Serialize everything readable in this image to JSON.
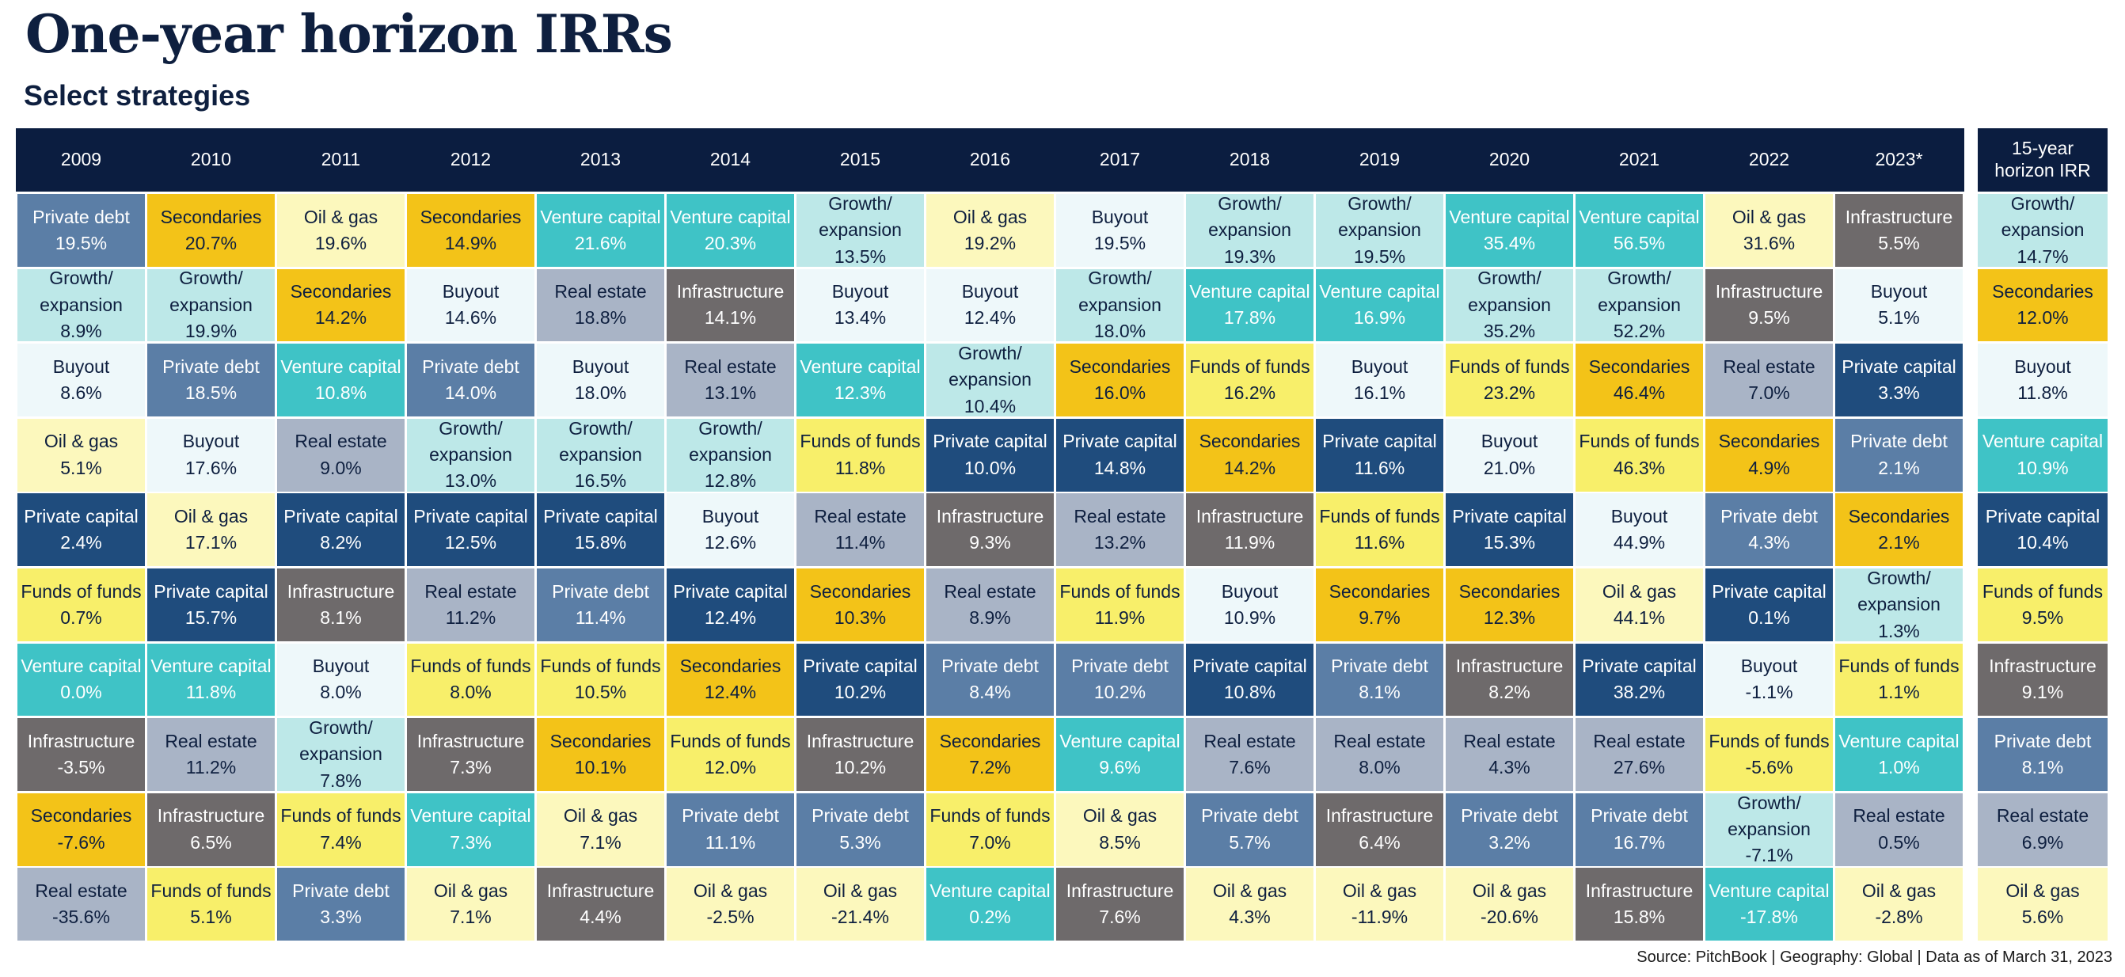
{
  "title": "One-year horizon IRRs",
  "subtitle": "Select strategies",
  "source": "Source: PitchBook | Geography: Global | Data as of March 31, 2023",
  "colors": {
    "Private debt": {
      "bg": "#5b7ea6",
      "fg": "#ffffff"
    },
    "Secondaries": {
      "bg": "#f3c318",
      "fg": "#0e1f3f"
    },
    "Oil & gas": {
      "bg": "#fcf8bd",
      "fg": "#0e1f3f"
    },
    "Venture capital": {
      "bg": "#3fc3c6",
      "fg": "#ffffff"
    },
    "Growth/ expansion": {
      "bg": "#bde8e8",
      "fg": "#0e1f3f"
    },
    "Buyout": {
      "bg": "#eef8fa",
      "fg": "#0e1f3f"
    },
    "Infrastructure": {
      "bg": "#6e6a6b",
      "fg": "#ffffff"
    },
    "Real estate": {
      "bg": "#a9b4c6",
      "fg": "#0e1f3f"
    },
    "Private capital": {
      "bg": "#1f4c7d",
      "fg": "#ffffff"
    },
    "Funds of funds": {
      "bg": "#f8ef6a",
      "fg": "#0e1f3f"
    }
  },
  "chart_data": {
    "type": "table",
    "title": "One-year horizon IRRs",
    "subtitle": "Select strategies",
    "columns": [
      {
        "year": "2009",
        "cells": [
          {
            "strategy": "Private debt",
            "value": "19.5%"
          },
          {
            "strategy": "Growth/ expansion",
            "value": "8.9%"
          },
          {
            "strategy": "Buyout",
            "value": "8.6%"
          },
          {
            "strategy": "Oil & gas",
            "value": "5.1%"
          },
          {
            "strategy": "Private capital",
            "value": "2.4%"
          },
          {
            "strategy": "Funds of funds",
            "value": "0.7%"
          },
          {
            "strategy": "Venture capital",
            "value": "0.0%"
          },
          {
            "strategy": "Infrastructure",
            "value": "-3.5%"
          },
          {
            "strategy": "Secondaries",
            "value": "-7.6%"
          },
          {
            "strategy": "Real estate",
            "value": "-35.6%"
          }
        ]
      },
      {
        "year": "2010",
        "cells": [
          {
            "strategy": "Secondaries",
            "value": "20.7%"
          },
          {
            "strategy": "Growth/ expansion",
            "value": "19.9%"
          },
          {
            "strategy": "Private debt",
            "value": "18.5%"
          },
          {
            "strategy": "Buyout",
            "value": "17.6%"
          },
          {
            "strategy": "Oil & gas",
            "value": "17.1%"
          },
          {
            "strategy": "Private capital",
            "value": "15.7%"
          },
          {
            "strategy": "Venture capital",
            "value": "11.8%"
          },
          {
            "strategy": "Real estate",
            "value": "11.2%"
          },
          {
            "strategy": "Infrastructure",
            "value": "6.5%"
          },
          {
            "strategy": "Funds of funds",
            "value": "5.1%"
          }
        ]
      },
      {
        "year": "2011",
        "cells": [
          {
            "strategy": "Oil & gas",
            "value": "19.6%"
          },
          {
            "strategy": "Secondaries",
            "value": "14.2%"
          },
          {
            "strategy": "Venture capital",
            "value": "10.8%"
          },
          {
            "strategy": "Real estate",
            "value": "9.0%"
          },
          {
            "strategy": "Private capital",
            "value": "8.2%"
          },
          {
            "strategy": "Infrastructure",
            "value": "8.1%"
          },
          {
            "strategy": "Buyout",
            "value": "8.0%"
          },
          {
            "strategy": "Growth/ expansion",
            "value": "7.8%"
          },
          {
            "strategy": "Funds of funds",
            "value": "7.4%"
          },
          {
            "strategy": "Private debt",
            "value": "3.3%"
          }
        ]
      },
      {
        "year": "2012",
        "cells": [
          {
            "strategy": "Secondaries",
            "value": "14.9%"
          },
          {
            "strategy": "Buyout",
            "value": "14.6%"
          },
          {
            "strategy": "Private debt",
            "value": "14.0%"
          },
          {
            "strategy": "Growth/ expansion",
            "value": "13.0%"
          },
          {
            "strategy": "Private capital",
            "value": "12.5%"
          },
          {
            "strategy": "Real estate",
            "value": "11.2%"
          },
          {
            "strategy": "Funds of funds",
            "value": "8.0%"
          },
          {
            "strategy": "Infrastructure",
            "value": "7.3%"
          },
          {
            "strategy": "Venture capital",
            "value": "7.3%"
          },
          {
            "strategy": "Oil & gas",
            "value": "7.1%"
          }
        ]
      },
      {
        "year": "2013",
        "cells": [
          {
            "strategy": "Venture capital",
            "value": "21.6%"
          },
          {
            "strategy": "Real estate",
            "value": "18.8%"
          },
          {
            "strategy": "Buyout",
            "value": "18.0%"
          },
          {
            "strategy": "Growth/ expansion",
            "value": "16.5%"
          },
          {
            "strategy": "Private capital",
            "value": "15.8%"
          },
          {
            "strategy": "Private debt",
            "value": "11.4%"
          },
          {
            "strategy": "Funds of funds",
            "value": "10.5%"
          },
          {
            "strategy": "Secondaries",
            "value": "10.1%"
          },
          {
            "strategy": "Oil & gas",
            "value": "7.1%"
          },
          {
            "strategy": "Infrastructure",
            "value": "4.4%"
          }
        ]
      },
      {
        "year": "2014",
        "cells": [
          {
            "strategy": "Venture capital",
            "value": "20.3%"
          },
          {
            "strategy": "Infrastructure",
            "value": "14.1%"
          },
          {
            "strategy": "Real estate",
            "value": "13.1%"
          },
          {
            "strategy": "Growth/ expansion",
            "value": "12.8%"
          },
          {
            "strategy": "Buyout",
            "value": "12.6%"
          },
          {
            "strategy": "Private capital",
            "value": "12.4%"
          },
          {
            "strategy": "Secondaries",
            "value": "12.4%"
          },
          {
            "strategy": "Funds of funds",
            "value": "12.0%"
          },
          {
            "strategy": "Private debt",
            "value": "11.1%"
          },
          {
            "strategy": "Oil & gas",
            "value": "-2.5%"
          }
        ]
      },
      {
        "year": "2015",
        "cells": [
          {
            "strategy": "Growth/ expansion",
            "value": "13.5%"
          },
          {
            "strategy": "Buyout",
            "value": "13.4%"
          },
          {
            "strategy": "Venture capital",
            "value": "12.3%"
          },
          {
            "strategy": "Funds of funds",
            "value": "11.8%"
          },
          {
            "strategy": "Real estate",
            "value": "11.4%"
          },
          {
            "strategy": "Secondaries",
            "value": "10.3%"
          },
          {
            "strategy": "Private capital",
            "value": "10.2%"
          },
          {
            "strategy": "Infrastructure",
            "value": "10.2%"
          },
          {
            "strategy": "Private debt",
            "value": "5.3%"
          },
          {
            "strategy": "Oil & gas",
            "value": "-21.4%"
          }
        ]
      },
      {
        "year": "2016",
        "cells": [
          {
            "strategy": "Oil & gas",
            "value": "19.2%"
          },
          {
            "strategy": "Buyout",
            "value": "12.4%"
          },
          {
            "strategy": "Growth/ expansion",
            "value": "10.4%"
          },
          {
            "strategy": "Private capital",
            "value": "10.0%"
          },
          {
            "strategy": "Infrastructure",
            "value": "9.3%"
          },
          {
            "strategy": "Real estate",
            "value": "8.9%"
          },
          {
            "strategy": "Private debt",
            "value": "8.4%"
          },
          {
            "strategy": "Secondaries",
            "value": "7.2%"
          },
          {
            "strategy": "Funds of funds",
            "value": "7.0%"
          },
          {
            "strategy": "Venture capital",
            "value": "0.2%"
          }
        ]
      },
      {
        "year": "2017",
        "cells": [
          {
            "strategy": "Buyout",
            "value": "19.5%"
          },
          {
            "strategy": "Growth/ expansion",
            "value": "18.0%"
          },
          {
            "strategy": "Secondaries",
            "value": "16.0%"
          },
          {
            "strategy": "Private capital",
            "value": "14.8%"
          },
          {
            "strategy": "Real estate",
            "value": "13.2%"
          },
          {
            "strategy": "Funds of funds",
            "value": "11.9%"
          },
          {
            "strategy": "Private debt",
            "value": "10.2%"
          },
          {
            "strategy": "Venture capital",
            "value": "9.6%"
          },
          {
            "strategy": "Oil & gas",
            "value": "8.5%"
          },
          {
            "strategy": "Infrastructure",
            "value": "7.6%"
          }
        ]
      },
      {
        "year": "2018",
        "cells": [
          {
            "strategy": "Growth/ expansion",
            "value": "19.3%"
          },
          {
            "strategy": "Venture capital",
            "value": "17.8%"
          },
          {
            "strategy": "Funds of funds",
            "value": "16.2%"
          },
          {
            "strategy": "Secondaries",
            "value": "14.2%"
          },
          {
            "strategy": "Infrastructure",
            "value": "11.9%"
          },
          {
            "strategy": "Buyout",
            "value": "10.9%"
          },
          {
            "strategy": "Private capital",
            "value": "10.8%"
          },
          {
            "strategy": "Real estate",
            "value": "7.6%"
          },
          {
            "strategy": "Private debt",
            "value": "5.7%"
          },
          {
            "strategy": "Oil & gas",
            "value": "4.3%"
          }
        ]
      },
      {
        "year": "2019",
        "cells": [
          {
            "strategy": "Growth/ expansion",
            "value": "19.5%"
          },
          {
            "strategy": "Venture capital",
            "value": "16.9%"
          },
          {
            "strategy": "Buyout",
            "value": "16.1%"
          },
          {
            "strategy": "Private capital",
            "value": "11.6%"
          },
          {
            "strategy": "Funds of funds",
            "value": "11.6%"
          },
          {
            "strategy": "Secondaries",
            "value": "9.7%"
          },
          {
            "strategy": "Private debt",
            "value": "8.1%"
          },
          {
            "strategy": "Real estate",
            "value": "8.0%"
          },
          {
            "strategy": "Infrastructure",
            "value": "6.4%"
          },
          {
            "strategy": "Oil & gas",
            "value": "-11.9%"
          }
        ]
      },
      {
        "year": "2020",
        "cells": [
          {
            "strategy": "Venture capital",
            "value": "35.4%"
          },
          {
            "strategy": "Growth/ expansion",
            "value": "35.2%"
          },
          {
            "strategy": "Funds of funds",
            "value": "23.2%"
          },
          {
            "strategy": "Buyout",
            "value": "21.0%"
          },
          {
            "strategy": "Private capital",
            "value": "15.3%"
          },
          {
            "strategy": "Secondaries",
            "value": "12.3%"
          },
          {
            "strategy": "Infrastructure",
            "value": "8.2%"
          },
          {
            "strategy": "Real estate",
            "value": "4.3%"
          },
          {
            "strategy": "Private debt",
            "value": "3.2%"
          },
          {
            "strategy": "Oil & gas",
            "value": "-20.6%"
          }
        ]
      },
      {
        "year": "2021",
        "cells": [
          {
            "strategy": "Venture capital",
            "value": "56.5%"
          },
          {
            "strategy": "Growth/ expansion",
            "value": "52.2%"
          },
          {
            "strategy": "Secondaries",
            "value": "46.4%"
          },
          {
            "strategy": "Funds of funds",
            "value": "46.3%"
          },
          {
            "strategy": "Buyout",
            "value": "44.9%"
          },
          {
            "strategy": "Oil & gas",
            "value": "44.1%"
          },
          {
            "strategy": "Private capital",
            "value": "38.2%"
          },
          {
            "strategy": "Real estate",
            "value": "27.6%"
          },
          {
            "strategy": "Private debt",
            "value": "16.7%"
          },
          {
            "strategy": "Infrastructure",
            "value": "15.8%"
          }
        ]
      },
      {
        "year": "2022",
        "cells": [
          {
            "strategy": "Oil & gas",
            "value": "31.6%"
          },
          {
            "strategy": "Infrastructure",
            "value": "9.5%"
          },
          {
            "strategy": "Real estate",
            "value": "7.0%"
          },
          {
            "strategy": "Secondaries",
            "value": "4.9%"
          },
          {
            "strategy": "Private debt",
            "value": "4.3%"
          },
          {
            "strategy": "Private capital",
            "value": "0.1%"
          },
          {
            "strategy": "Buyout",
            "value": "-1.1%"
          },
          {
            "strategy": "Funds of funds",
            "value": "-5.6%"
          },
          {
            "strategy": "Growth/ expansion",
            "value": "-7.1%"
          },
          {
            "strategy": "Venture capital",
            "value": "-17.8%"
          }
        ]
      },
      {
        "year": "2023*",
        "cells": [
          {
            "strategy": "Infrastructure",
            "value": "5.5%"
          },
          {
            "strategy": "Buyout",
            "value": "5.1%"
          },
          {
            "strategy": "Private capital",
            "value": "3.3%"
          },
          {
            "strategy": "Private debt",
            "value": "2.1%"
          },
          {
            "strategy": "Secondaries",
            "value": "2.1%"
          },
          {
            "strategy": "Growth/ expansion",
            "value": "1.3%"
          },
          {
            "strategy": "Funds of funds",
            "value": "1.1%"
          },
          {
            "strategy": "Venture capital",
            "value": "1.0%"
          },
          {
            "strategy": "Real estate",
            "value": "0.5%"
          },
          {
            "strategy": "Oil & gas",
            "value": "-2.8%"
          }
        ]
      }
    ],
    "horizon_column": {
      "header": "15-year horizon IRR",
      "cells": [
        {
          "strategy": "Growth/ expansion",
          "value": "14.7%"
        },
        {
          "strategy": "Secondaries",
          "value": "12.0%"
        },
        {
          "strategy": "Buyout",
          "value": "11.8%"
        },
        {
          "strategy": "Venture capital",
          "value": "10.9%"
        },
        {
          "strategy": "Private capital",
          "value": "10.4%"
        },
        {
          "strategy": "Funds of funds",
          "value": "9.5%"
        },
        {
          "strategy": "Infrastructure",
          "value": "9.1%"
        },
        {
          "strategy": "Private debt",
          "value": "8.1%"
        },
        {
          "strategy": "Real estate",
          "value": "6.9%"
        },
        {
          "strategy": "Oil & gas",
          "value": "5.6%"
        }
      ]
    }
  }
}
